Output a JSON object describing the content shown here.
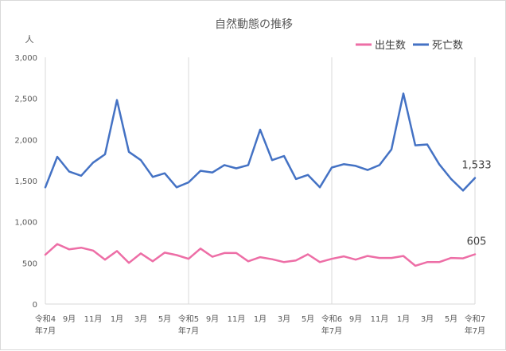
{
  "chart_data": {
    "type": "line",
    "title": "自然動態の推移",
    "ylabel": "人",
    "ylim": [
      0,
      3000
    ],
    "yticks": [
      0,
      500,
      1000,
      1500,
      2000,
      2500,
      3000
    ],
    "ytick_labels": [
      "0",
      "500",
      "1,000",
      "1,500",
      "2,000",
      "2,500",
      "3,000"
    ],
    "legend_position": "top-right",
    "grid": "vertical lines at each July",
    "x_tick_labels": [
      [
        "令和4",
        "年7月"
      ],
      [
        "9月"
      ],
      [
        "11月"
      ],
      [
        "1月"
      ],
      [
        "3月"
      ],
      [
        "5月"
      ],
      [
        "令和5",
        "年7月"
      ],
      [
        "9月"
      ],
      [
        "11月"
      ],
      [
        "1月"
      ],
      [
        "3月"
      ],
      [
        "5月"
      ],
      [
        "令和6",
        "年7月"
      ],
      [
        "9月"
      ],
      [
        "11月"
      ],
      [
        "1月"
      ],
      [
        "3月"
      ],
      [
        "5月"
      ],
      [
        "令和7",
        "年7月"
      ]
    ],
    "series": [
      {
        "name": "出生数",
        "color": "#ed6ea6",
        "values": [
          600,
          730,
          665,
          685,
          650,
          540,
          645,
          500,
          615,
          520,
          625,
          595,
          550,
          675,
          575,
          620,
          620,
          520,
          570,
          545,
          510,
          530,
          605,
          510,
          550,
          580,
          540,
          585,
          560,
          560,
          585,
          465,
          510,
          510,
          560,
          555,
          605
        ],
        "end_label": "605"
      },
      {
        "name": "死亡数",
        "color": "#4472c4",
        "values": [
          1420,
          1790,
          1610,
          1560,
          1720,
          1820,
          2480,
          1850,
          1750,
          1545,
          1590,
          1420,
          1480,
          1620,
          1600,
          1690,
          1650,
          1690,
          2120,
          1750,
          1800,
          1520,
          1570,
          1420,
          1660,
          1700,
          1680,
          1630,
          1690,
          1880,
          2560,
          1930,
          1940,
          1700,
          1520,
          1380,
          1533
        ],
        "end_label": "1,533"
      }
    ]
  }
}
